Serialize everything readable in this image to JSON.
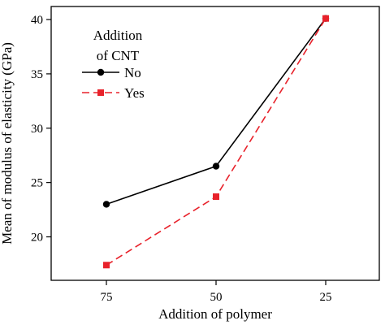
{
  "chart_data": {
    "type": "line",
    "xlabel": "Addition of polymer",
    "ylabel": "Mean of modulus of elasticity (GPa)",
    "categories": [
      "75",
      "50",
      "25"
    ],
    "yticks": [
      20,
      25,
      30,
      35,
      40
    ],
    "ylim": [
      16,
      41.2
    ],
    "grid": false,
    "legend": {
      "title_lines": [
        "Addition",
        "of CNT"
      ],
      "placement": "top-left"
    },
    "series": [
      {
        "name": "No",
        "values": [
          23.0,
          26.5,
          40.1
        ],
        "color": "#000000",
        "line_style": "solid",
        "marker": "circle"
      },
      {
        "name": "Yes",
        "values": [
          17.4,
          23.7,
          40.1
        ],
        "color": "#e8222b",
        "line_style": "dashed",
        "marker": "square"
      }
    ]
  }
}
